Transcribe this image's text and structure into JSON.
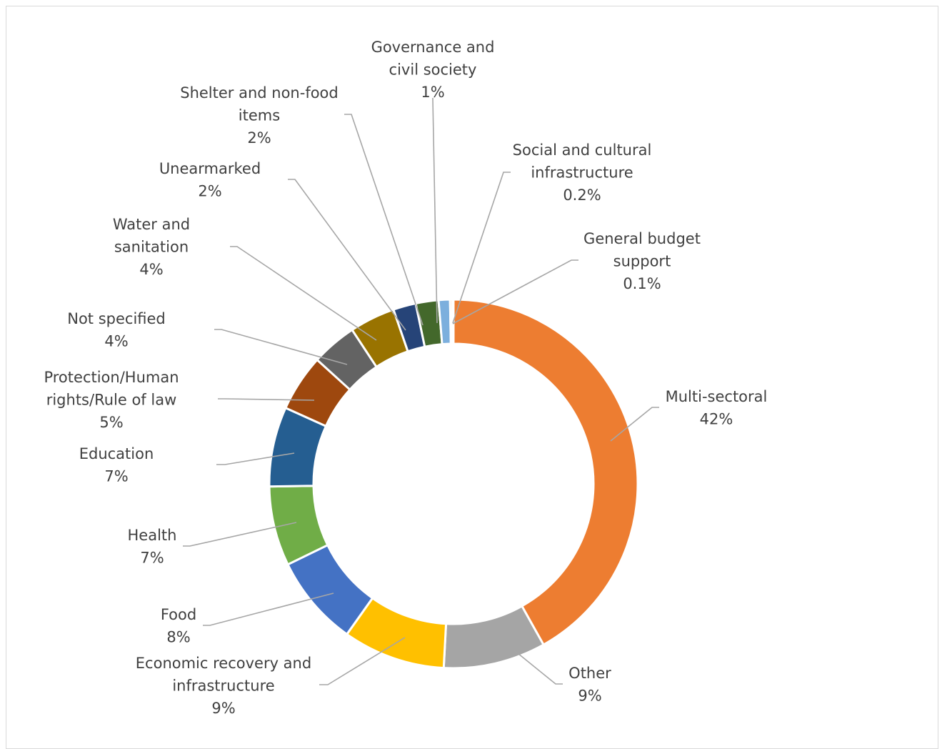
{
  "chart_data": {
    "type": "pie",
    "donut": true,
    "title": "",
    "legend": "none",
    "slices": [
      {
        "label_lines": [
          "Multi-sectoral"
        ],
        "value_label": "42%",
        "value": 42,
        "color": "#ED7D31"
      },
      {
        "label_lines": [
          "Other"
        ],
        "value_label": "9%",
        "value": 9,
        "color": "#A5A5A5"
      },
      {
        "label_lines": [
          "Economic recovery and",
          "infrastructure"
        ],
        "value_label": "9%",
        "value": 9,
        "color": "#FFC000"
      },
      {
        "label_lines": [
          "Food"
        ],
        "value_label": "8%",
        "value": 8,
        "color": "#4472C4"
      },
      {
        "label_lines": [
          "Health"
        ],
        "value_label": "7%",
        "value": 7,
        "color": "#70AD47"
      },
      {
        "label_lines": [
          "Education"
        ],
        "value_label": "7%",
        "value": 7,
        "color": "#255E91"
      },
      {
        "label_lines": [
          "Protection/Human",
          "rights/Rule of law"
        ],
        "value_label": "5%",
        "value": 5,
        "color": "#9E480E"
      },
      {
        "label_lines": [
          "Not specified"
        ],
        "value_label": "4%",
        "value": 4,
        "color": "#636363"
      },
      {
        "label_lines": [
          "Water and",
          "sanitation"
        ],
        "value_label": "4%",
        "value": 4,
        "color": "#997300"
      },
      {
        "label_lines": [
          "Unearmarked"
        ],
        "value_label": "2%",
        "value": 2,
        "color": "#264478"
      },
      {
        "label_lines": [
          "Shelter and non-food",
          "items"
        ],
        "value_label": "2%",
        "value": 2,
        "color": "#43682B"
      },
      {
        "label_lines": [
          "Governance and",
          "civil society"
        ],
        "value_label": "1%",
        "value": 1,
        "color": "#7CAFDD"
      },
      {
        "label_lines": [
          "Social and cultural",
          "infrastructure"
        ],
        "value_label": "0.2%",
        "value": 0.2,
        "color": "#F1975A"
      },
      {
        "label_lines": [
          "General budget",
          "support"
        ],
        "value_label": "0.1%",
        "value": 0.1,
        "color": "#B7B7B7"
      }
    ]
  }
}
